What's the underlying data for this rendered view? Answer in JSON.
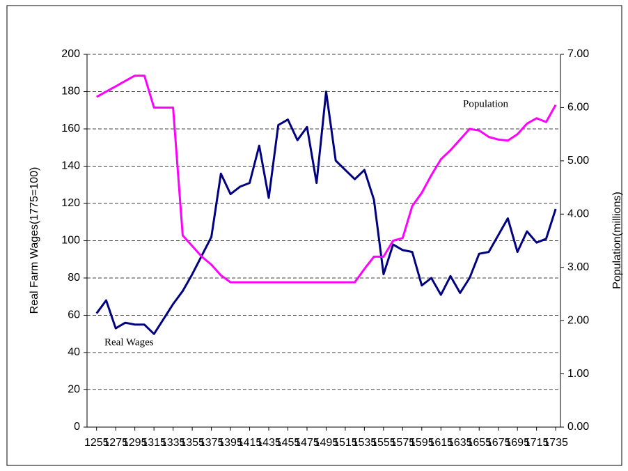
{
  "chart_data": {
    "type": "line",
    "y_label": "Real Farm Wages(1775=100)",
    "y2_label": "Population(millions)",
    "annotations": [
      "Population",
      "Real Wages"
    ],
    "x": [
      1255,
      1265,
      1275,
      1285,
      1295,
      1305,
      1315,
      1325,
      1335,
      1345,
      1355,
      1365,
      1375,
      1385,
      1395,
      1405,
      1415,
      1425,
      1435,
      1445,
      1455,
      1465,
      1475,
      1485,
      1495,
      1505,
      1515,
      1525,
      1535,
      1545,
      1555,
      1565,
      1575,
      1585,
      1595,
      1605,
      1615,
      1625,
      1635,
      1645,
      1655,
      1665,
      1675,
      1685,
      1695,
      1705,
      1715,
      1725,
      1735
    ],
    "xlim": [
      1245,
      1740
    ],
    "xticks": [
      1255,
      1275,
      1295,
      1315,
      1335,
      1355,
      1375,
      1395,
      1415,
      1435,
      1455,
      1475,
      1495,
      1515,
      1535,
      1555,
      1575,
      1595,
      1615,
      1635,
      1655,
      1675,
      1695,
      1715,
      1735
    ],
    "ylim": [
      0,
      200
    ],
    "yticks": [
      0,
      20,
      40,
      60,
      80,
      100,
      120,
      140,
      160,
      180,
      200
    ],
    "y2lim": [
      0,
      7
    ],
    "y2ticks": [
      {
        "value": 0,
        "label": "0.00"
      },
      {
        "value": 1,
        "label": "1.00"
      },
      {
        "value": 2,
        "label": "2.00"
      },
      {
        "value": 3,
        "label": "3.00"
      },
      {
        "value": 4,
        "label": "4.00"
      },
      {
        "value": 5,
        "label": "5.00"
      },
      {
        "value": 6,
        "label": "6.00"
      },
      {
        "value": 7,
        "label": "7.00"
      }
    ],
    "grid": true,
    "series": [
      {
        "name": "Real Wages",
        "color": "#000080",
        "values": [
          61,
          68,
          53,
          56,
          55,
          55,
          50,
          58,
          66,
          73,
          82,
          92,
          102,
          136,
          125,
          129,
          131,
          151,
          123,
          162,
          165,
          154,
          161,
          131,
          180,
          143,
          138,
          133,
          138,
          122,
          82,
          98,
          95,
          94,
          76,
          80,
          71,
          81,
          72,
          80,
          93,
          94,
          103,
          112,
          94,
          105,
          99,
          101,
          117
        ]
      },
      {
        "name": "Population",
        "color": "#ff00ff",
        "axis": "y2",
        "values": [
          6.2,
          6.3,
          6.4,
          6.5,
          6.6,
          6.6,
          6.0,
          6.0,
          6.0,
          3.6,
          3.4,
          3.2,
          3.05,
          2.85,
          2.72,
          2.72,
          2.72,
          2.72,
          2.72,
          2.72,
          2.72,
          2.72,
          2.72,
          2.72,
          2.72,
          2.72,
          2.72,
          2.72,
          2.97,
          3.2,
          3.2,
          3.5,
          3.55,
          4.15,
          4.4,
          4.73,
          5.03,
          5.2,
          5.4,
          5.6,
          5.57,
          5.45,
          5.4,
          5.38,
          5.5,
          5.7,
          5.8,
          5.73,
          6.05
        ]
      }
    ]
  }
}
